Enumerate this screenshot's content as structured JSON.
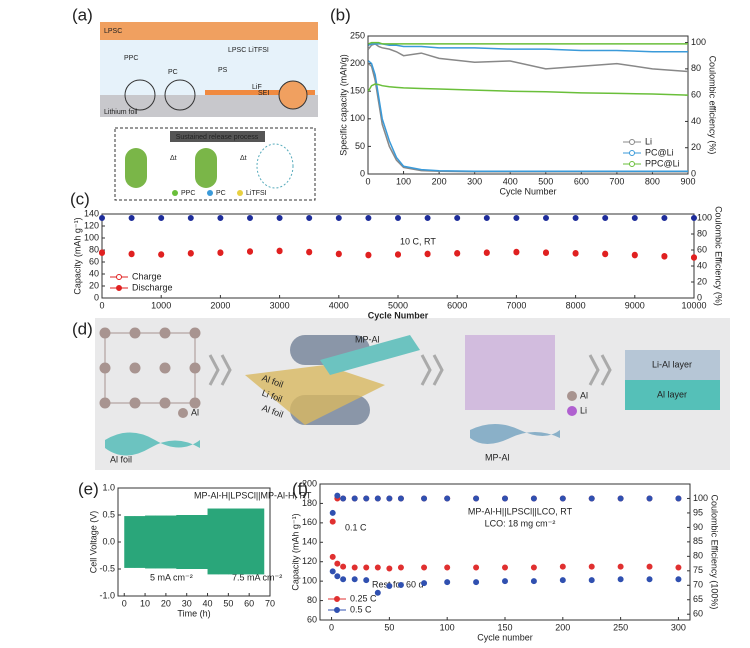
{
  "panels": {
    "labels": [
      "(a)",
      "(b)",
      "(c)",
      "(d)",
      "(e)",
      "(f)"
    ]
  },
  "diagram_a": {
    "texts": [
      "LPSC",
      "PPC",
      "PC",
      "LPSC LiTFSI",
      "PS",
      "LiF",
      "SEI",
      "Lithium foil",
      "Sustained release process",
      "Δt",
      "Δt",
      "PPC",
      "PC",
      "LiTFSI"
    ]
  },
  "diagram_d": {
    "texts": [
      "MP-Al",
      "Al",
      "Al foil",
      "Li foil",
      "Al foil",
      "Al",
      "Li",
      "Li-Al layer",
      "Al layer",
      "MP-Al",
      "Al foil",
      "Al"
    ]
  },
  "chart_data": [
    {
      "type": "line",
      "xlabel": "Cycle Number",
      "ylabel": "Specific capacity (mAh/g)",
      "y2label": "Coulombic efficiency (%)",
      "xlim": [
        0,
        900
      ],
      "xticks": [
        0,
        100,
        200,
        300,
        400,
        500,
        600,
        700,
        800,
        900
      ],
      "ylim": [
        0,
        250
      ],
      "yticks": [
        0,
        50,
        100,
        150,
        200,
        250
      ],
      "y2lim": [
        0,
        105
      ],
      "y2ticks": [
        0,
        20,
        40,
        60,
        80,
        100
      ],
      "legend": "lower right",
      "x": [
        1,
        10,
        20,
        30,
        40,
        60,
        80,
        100,
        150,
        200,
        300,
        400,
        500,
        600,
        700,
        800,
        900
      ],
      "series": [
        {
          "name": "Li",
          "color": "#888888",
          "values": [
            200,
            195,
            170,
            130,
            90,
            50,
            25,
            12,
            6,
            5,
            4,
            4,
            4,
            4,
            4,
            4,
            4
          ]
        },
        {
          "name": "PC@Li",
          "color": "#3a9ad9",
          "values": [
            205,
            200,
            180,
            140,
            100,
            60,
            30,
            14,
            8,
            6,
            5,
            5,
            5,
            5,
            5,
            5,
            5
          ]
        },
        {
          "name": "PPC@Li",
          "color": "#6abf3a",
          "values": [
            150,
            160,
            163,
            162,
            160,
            158,
            157,
            156,
            155,
            154,
            152,
            150,
            149,
            147,
            146,
            145,
            143
          ]
        },
        {
          "color": "#888888",
          "axis": "y2",
          "values": [
            95,
            98,
            99,
            97,
            96,
            95,
            93,
            90,
            92,
            88,
            85,
            86,
            80,
            82,
            84,
            80,
            78
          ]
        },
        {
          "color": "#3a9ad9",
          "axis": "y2",
          "values": [
            98,
            99,
            99,
            99,
            99,
            98,
            98,
            97,
            97,
            96,
            96,
            95,
            95,
            94,
            94,
            93,
            93
          ]
        },
        {
          "color": "#6abf3a",
          "axis": "y2",
          "values": [
            99,
            100,
            100,
            100,
            99,
            99,
            99,
            99,
            99,
            99,
            99,
            99,
            99,
            99,
            99,
            99,
            99
          ]
        }
      ]
    },
    {
      "type": "line",
      "xlabel": "Cycle Number",
      "ylabel": "Capacity (mAh g⁻¹)",
      "y2label": "Coulombic Efficiency (%)",
      "annotations": [
        "10 C, RT"
      ],
      "xlim": [
        0,
        10000
      ],
      "xticks": [
        0,
        1000,
        2000,
        3000,
        4000,
        5000,
        6000,
        7000,
        8000,
        9000,
        10000
      ],
      "ylim": [
        0,
        140
      ],
      "yticks": [
        0,
        20,
        40,
        60,
        80,
        100,
        120,
        140
      ],
      "y2lim": [
        0,
        105
      ],
      "y2ticks": [
        0,
        20,
        40,
        60,
        80,
        100
      ],
      "legend": "lower left",
      "x": [
        0,
        500,
        1000,
        1500,
        2000,
        2500,
        3000,
        3500,
        4000,
        4500,
        5000,
        5500,
        6000,
        6500,
        7000,
        7500,
        8000,
        8500,
        9000,
        9500,
        10000
      ],
      "series": [
        {
          "name": "Charge",
          "color": "#e02020",
          "marker": "open",
          "values": [
            76,
            74,
            73,
            75,
            76,
            78,
            79,
            77,
            74,
            72,
            73,
            74,
            75,
            76,
            77,
            76,
            75,
            74,
            72,
            70,
            68
          ]
        },
        {
          "name": "Discharge",
          "color": "#e02020",
          "marker": "filled",
          "values": [
            75,
            73,
            72,
            74,
            75,
            77,
            78,
            76,
            73,
            71,
            72,
            73,
            74,
            75,
            76,
            75,
            74,
            73,
            71,
            69,
            67
          ]
        },
        {
          "color": "#1e2d9a",
          "marker": "filled",
          "axis": "y2",
          "values": [
            100,
            100,
            100,
            100,
            100,
            100,
            100,
            100,
            100,
            100,
            100,
            100,
            100,
            100,
            100,
            100,
            100,
            100,
            100,
            100,
            100
          ]
        }
      ]
    },
    {
      "type": "band",
      "xlabel": "Time (h)",
      "ylabel": "Cell Voltage (V)",
      "color": "#2aa67a",
      "annotations": [
        "MP-Al-H|LPSCl||MP-Al-H, RT",
        "5 mA cm⁻²",
        "7.5 mA cm⁻²"
      ],
      "xlim": [
        -3,
        70
      ],
      "xticks": [
        0,
        10,
        20,
        30,
        40,
        50,
        60,
        70
      ],
      "ylim": [
        -1,
        1
      ],
      "yticks": [
        {
          "value": -1,
          "label": "-1.0"
        },
        -0.5,
        {
          "value": 0,
          "label": "0.0"
        },
        0.5,
        {
          "value": 1,
          "label": "1.0"
        }
      ],
      "x": [
        0,
        5,
        10,
        15,
        20,
        25,
        30,
        35,
        40,
        40,
        45,
        50,
        55,
        60,
        65,
        67
      ],
      "upper": [
        0.48,
        0.48,
        0.49,
        0.49,
        0.49,
        0.5,
        0.5,
        0.5,
        0.5,
        0.62,
        0.62,
        0.62,
        0.62,
        0.62,
        0.62,
        0.62
      ],
      "lower": [
        -0.48,
        -0.48,
        -0.49,
        -0.49,
        -0.49,
        -0.5,
        -0.5,
        -0.5,
        -0.5,
        -0.6,
        -0.6,
        -0.6,
        -0.6,
        -0.6,
        -0.6,
        -0.6
      ]
    },
    {
      "type": "line",
      "xlabel": "Cycle number",
      "ylabel": "Capacity (mAh g⁻¹)",
      "y2label": "Coulombic Efficiency (100%)",
      "annotations": [
        "MP-Al-H||LPSCl||LCO,  RT",
        "LCO: 18 mg cm⁻²",
        "0.1 C",
        "Rest for 60 d"
      ],
      "xlim": [
        -10,
        310
      ],
      "xticks": [
        0,
        50,
        100,
        150,
        200,
        250,
        300
      ],
      "ylim": [
        60,
        200
      ],
      "yticks": [
        60,
        80,
        100,
        120,
        140,
        160,
        180,
        200
      ],
      "y2lim": [
        58,
        105
      ],
      "y2ticks": [
        60,
        65,
        70,
        75,
        80,
        85,
        90,
        95,
        100
      ],
      "legend": "lower left",
      "x": [
        1,
        5,
        10,
        20,
        30,
        40,
        50,
        60,
        80,
        100,
        125,
        150,
        175,
        200,
        225,
        250,
        275,
        300
      ],
      "series": [
        {
          "name": "0.25 C",
          "color": "#e03030",
          "marker": "filled",
          "values": [
            125,
            118,
            115,
            114,
            114,
            114,
            113,
            114,
            114,
            114,
            114,
            114,
            114,
            115,
            115,
            115,
            115,
            114
          ]
        },
        {
          "name": "0.5 C",
          "color": "#3050b0",
          "marker": "filled",
          "values": [
            110,
            105,
            102,
            102,
            101,
            88,
            95,
            96,
            98,
            99,
            99,
            100,
            100,
            101,
            101,
            102,
            102,
            102
          ]
        },
        {
          "color": "#e03030",
          "marker": "filled",
          "axis": "y2",
          "values": [
            92,
            100,
            100,
            100,
            100,
            100,
            100,
            100,
            100,
            100,
            100,
            100,
            100,
            100,
            100,
            100,
            100,
            100
          ]
        },
        {
          "color": "#3050b0",
          "marker": "filled",
          "axis": "y2",
          "values": [
            95,
            101,
            100,
            100,
            100,
            100,
            100,
            100,
            100,
            100,
            100,
            100,
            100,
            100,
            100,
            100,
            100,
            100
          ]
        }
      ]
    }
  ]
}
